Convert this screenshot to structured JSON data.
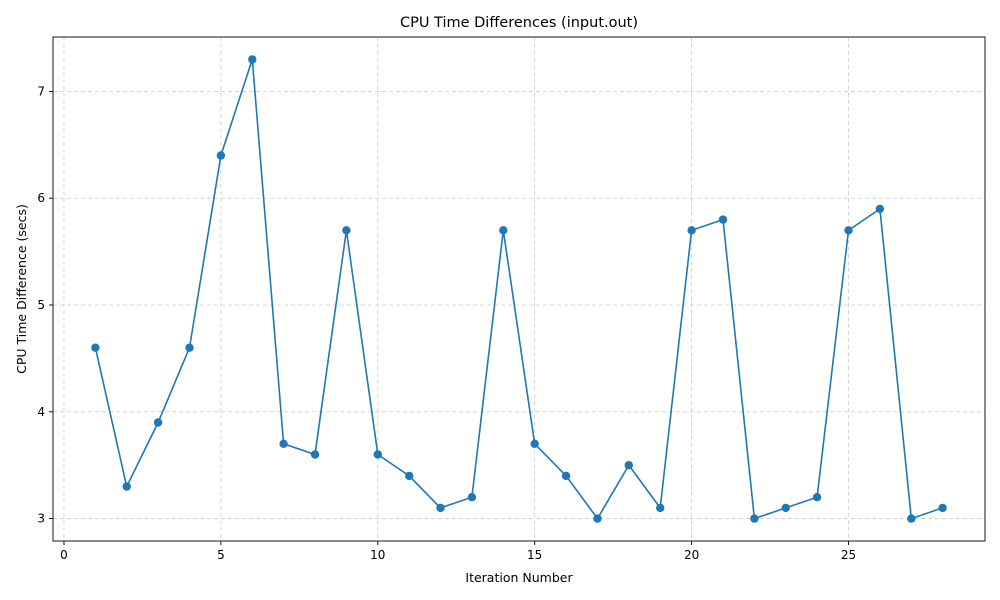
{
  "chart_data": {
    "type": "line",
    "title": "CPU Time Differences (input.out)",
    "xlabel": "Iteration Number",
    "ylabel": "CPU Time Difference (secs)",
    "xlim": [
      -0.35,
      29.35
    ],
    "ylim": [
      2.79,
      7.51
    ],
    "xticks": [
      0,
      5,
      10,
      15,
      20,
      25
    ],
    "yticks": [
      3,
      4,
      5,
      6,
      7
    ],
    "grid": true,
    "marker": "circle",
    "color": "#1f77b4",
    "series": [
      {
        "x": [
          1,
          2,
          3,
          4,
          5,
          6,
          7,
          8,
          9,
          10,
          11,
          12,
          13,
          14,
          15,
          16,
          17,
          18,
          19,
          20,
          21,
          22,
          23,
          24,
          25,
          26,
          27,
          28
        ],
        "values": [
          4.6,
          3.3,
          3.9,
          4.6,
          6.4,
          7.3,
          3.7,
          3.6,
          5.7,
          3.6,
          3.4,
          3.1,
          3.2,
          5.7,
          3.7,
          3.4,
          3.0,
          3.5,
          3.1,
          5.7,
          5.8,
          3.0,
          3.1,
          3.2,
          5.7,
          5.9,
          3.0,
          3.1
        ]
      }
    ]
  }
}
